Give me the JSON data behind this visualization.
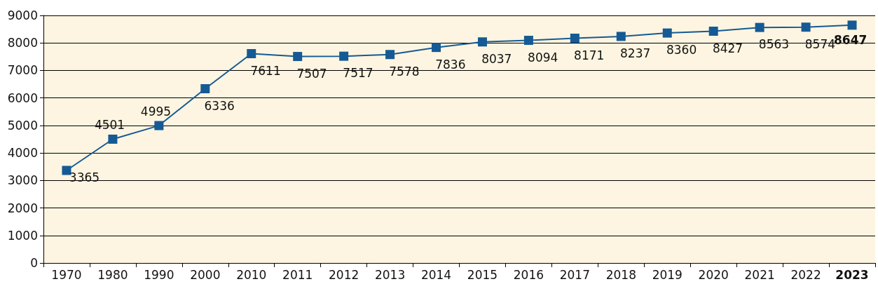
{
  "chart_data": {
    "type": "line",
    "categories": [
      "1970",
      "1980",
      "1990",
      "2000",
      "2010",
      "2011",
      "2012",
      "2013",
      "2014",
      "2015",
      "2016",
      "2017",
      "2018",
      "2019",
      "2020",
      "2021",
      "2022",
      "2023"
    ],
    "series": [
      {
        "color": "#155a94",
        "values": [
          3365,
          4501,
          4995,
          6336,
          7611,
          7507,
          7517,
          7578,
          7836,
          8037,
          8094,
          8171,
          8237,
          8360,
          8427,
          8563,
          8574,
          8647
        ]
      }
    ],
    "ylim": [
      0,
      9000
    ],
    "yticks": [
      0,
      1000,
      2000,
      3000,
      4000,
      5000,
      6000,
      7000,
      8000,
      9000
    ],
    "grid": "y",
    "marker": "square",
    "line_style": "solid",
    "data_labels": true
  }
}
